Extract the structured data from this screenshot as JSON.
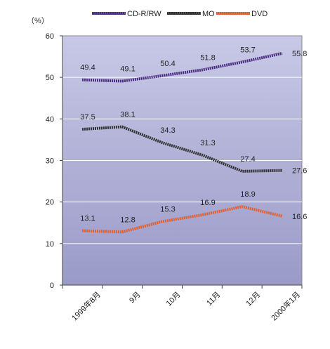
{
  "chart_data": {
    "type": "line",
    "title": "",
    "xlabel": "",
    "ylabel": "",
    "unit_label": "（%）",
    "categories": [
      "1999年8月",
      "9月",
      "10月",
      "11月",
      "12月",
      "2000年1月"
    ],
    "ylim": [
      0,
      60
    ],
    "yticks": [
      0,
      10,
      20,
      30,
      40,
      50,
      60
    ],
    "grid": true,
    "legend_position": "top",
    "background_gradient": [
      "#c8c8e6",
      "#9a9ac8"
    ],
    "series": [
      {
        "name": "CD-R/RW",
        "values": [
          49.4,
          49.1,
          50.4,
          51.8,
          53.7,
          55.8
        ],
        "labels": [
          "49.4",
          "49.1",
          "50.4",
          "51.8",
          "53.7",
          "55.8"
        ],
        "color": "#4b2e83"
      },
      {
        "name": "MO",
        "values": [
          37.5,
          38.1,
          34.3,
          31.3,
          27.4,
          27.6
        ],
        "labels": [
          "37.5",
          "38.1",
          "34.3",
          "31.3",
          "27.4",
          "27.6"
        ],
        "color": "#333333"
      },
      {
        "name": "DVD",
        "values": [
          13.1,
          12.8,
          15.3,
          16.9,
          18.9,
          16.6
        ],
        "labels": [
          "13.1",
          "12.8",
          "15.3",
          "16.9",
          "18.9",
          "16.6"
        ],
        "color": "#e06030"
      }
    ]
  }
}
